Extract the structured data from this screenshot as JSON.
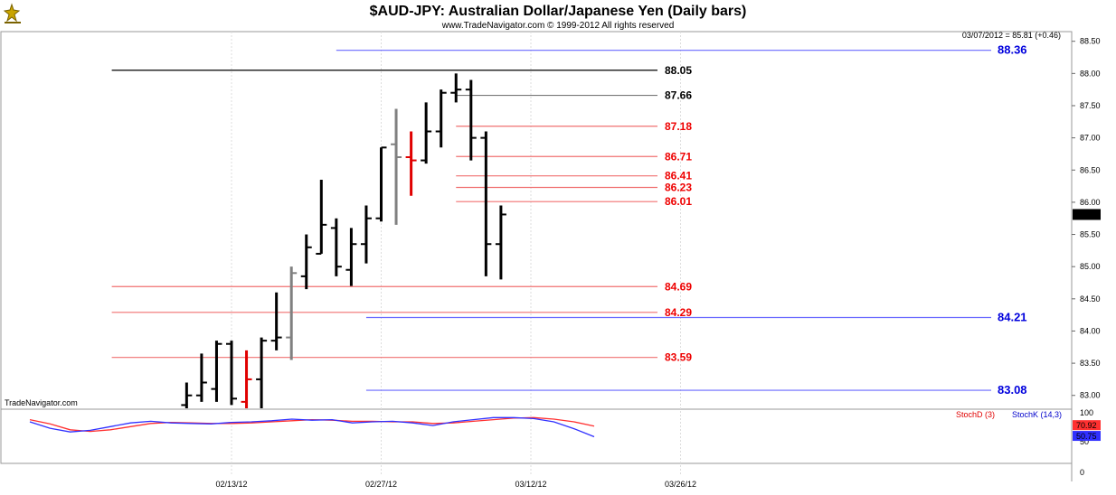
{
  "header": {
    "title": "$AUD-JPY:  Australian Dollar/Japanese Yen  (Daily bars)",
    "copyright": "www.TradeNavigator.com © 1999-2012 All rights reserved",
    "quote_readout": "03/07/2012 = 85.81 (+0.46)",
    "watermark": "TradeNavigator.com"
  },
  "colors": {
    "bar_black": "#000000",
    "bar_red": "#e00000",
    "bar_gray": "#808080",
    "line_red": "#f07070",
    "line_blue": "#6a6aff",
    "text_red": "#ee0000",
    "text_blue": "#0000dd",
    "grid": "#dddddd",
    "stoch_d": "#ff3030",
    "stoch_k": "#3030ff"
  },
  "chart_data": {
    "type": "ohlc",
    "title": "$AUD-JPY:  Australian Dollar/Japanese Yen  (Daily bars)",
    "price_axis": {
      "range": [
        82.8,
        88.65
      ],
      "ticks": [
        "88.50",
        "88.00",
        "87.50",
        "87.00",
        "86.50",
        "86.00",
        "85.50",
        "85.00",
        "84.50",
        "84.00",
        "83.50",
        "83.00"
      ]
    },
    "last_price_label": "85.81",
    "date_ticks": [
      "02/13/12",
      "02/27/12",
      "03/12/12",
      "03/26/12"
    ],
    "bars": [
      {
        "date": "02/08/12",
        "open": 82.85,
        "high": 83.2,
        "low": 82.8,
        "close": 83.0,
        "color": "black"
      },
      {
        "date": "02/09/12",
        "open": 83.0,
        "high": 83.65,
        "low": 82.9,
        "close": 83.2,
        "color": "black"
      },
      {
        "date": "02/10/12",
        "open": 83.1,
        "high": 83.85,
        "low": 82.9,
        "close": 83.8,
        "color": "black"
      },
      {
        "date": "02/13/12",
        "open": 83.8,
        "high": 83.85,
        "low": 82.85,
        "close": 82.95,
        "color": "black"
      },
      {
        "date": "02/14/12",
        "open": 82.9,
        "high": 83.7,
        "low": 82.8,
        "close": 83.25,
        "color": "red"
      },
      {
        "date": "02/15/12",
        "open": 83.25,
        "high": 83.9,
        "low": 82.8,
        "close": 83.85,
        "color": "black"
      },
      {
        "date": "02/16/12",
        "open": 83.85,
        "high": 84.6,
        "low": 83.7,
        "close": 83.9,
        "color": "black"
      },
      {
        "date": "02/17/12",
        "open": 83.9,
        "high": 85.0,
        "low": 83.55,
        "close": 84.9,
        "color": "gray"
      },
      {
        "date": "02/20/12",
        "open": 84.85,
        "high": 85.5,
        "low": 84.65,
        "close": 85.3,
        "color": "black"
      },
      {
        "date": "02/21/12",
        "open": 85.2,
        "high": 86.35,
        "low": 85.2,
        "close": 85.65,
        "color": "black"
      },
      {
        "date": "02/22/12",
        "open": 85.6,
        "high": 85.75,
        "low": 84.85,
        "close": 85.0,
        "color": "black"
      },
      {
        "date": "02/23/12",
        "open": 84.95,
        "high": 85.6,
        "low": 84.7,
        "close": 85.35,
        "color": "black"
      },
      {
        "date": "02/24/12",
        "open": 85.35,
        "high": 85.95,
        "low": 85.05,
        "close": 85.75,
        "color": "black"
      },
      {
        "date": "02/27/12",
        "open": 85.75,
        "high": 86.85,
        "low": 85.7,
        "close": 86.85,
        "color": "black"
      },
      {
        "date": "02/28/12",
        "open": 86.9,
        "high": 87.45,
        "low": 85.65,
        "close": 86.7,
        "color": "gray"
      },
      {
        "date": "02/29/12",
        "open": 86.7,
        "high": 87.1,
        "low": 86.1,
        "close": 86.65,
        "color": "red"
      },
      {
        "date": "03/01/12",
        "open": 86.65,
        "high": 87.55,
        "low": 86.6,
        "close": 87.1,
        "color": "black"
      },
      {
        "date": "03/02/12",
        "open": 87.1,
        "high": 87.75,
        "low": 86.85,
        "close": 87.7,
        "color": "black"
      },
      {
        "date": "03/05/12",
        "open": 87.7,
        "high": 88.0,
        "low": 87.55,
        "close": 87.75,
        "color": "black"
      },
      {
        "date": "03/06/12",
        "open": 87.75,
        "high": 87.9,
        "low": 86.65,
        "close": 87.0,
        "color": "black"
      },
      {
        "date": "03/07/12",
        "open": 87.0,
        "high": 87.1,
        "low": 84.85,
        "close": 85.35,
        "color": "black"
      },
      {
        "date": "03/08/12",
        "open": 85.35,
        "high": 85.95,
        "low": 84.8,
        "close": 85.81,
        "color": "black"
      }
    ],
    "levels": [
      {
        "label": "88.36",
        "price": 88.36,
        "color": "blue",
        "from_date": "02/22/12"
      },
      {
        "label": "88.05",
        "price": 88.05,
        "color": "black",
        "from_date": "02/01/12"
      },
      {
        "label": "87.66",
        "price": 87.66,
        "color": "gray",
        "from_date": "03/05/12"
      },
      {
        "label": "87.18",
        "price": 87.18,
        "color": "red",
        "from_date": "03/05/12"
      },
      {
        "label": "86.71",
        "price": 86.71,
        "color": "red",
        "from_date": "03/05/12"
      },
      {
        "label": "86.41",
        "price": 86.41,
        "color": "red",
        "from_date": "03/05/12"
      },
      {
        "label": "86.23",
        "price": 86.23,
        "color": "red",
        "from_date": "03/05/12"
      },
      {
        "label": "86.01",
        "price": 86.01,
        "color": "red",
        "from_date": "03/05/12"
      },
      {
        "label": "84.69",
        "price": 84.69,
        "color": "red",
        "from_date": "02/01/12"
      },
      {
        "label": "84.29",
        "price": 84.29,
        "color": "red",
        "from_date": "02/01/12"
      },
      {
        "label": "84.21",
        "price": 84.21,
        "color": "blue",
        "from_date": "02/24/12"
      },
      {
        "label": "83.59",
        "price": 83.59,
        "color": "red",
        "from_date": "02/01/12"
      },
      {
        "label": "83.08",
        "price": 83.08,
        "color": "blue",
        "from_date": "02/24/12"
      }
    ],
    "stochastic": {
      "d_label": "StochD (3)",
      "k_label": "StochK (14,3)",
      "axis_ticks": [
        "100",
        "50",
        "0"
      ],
      "range": [
        0,
        100
      ],
      "d_value_label": "70.92",
      "k_value_label": "50.75",
      "k_values": [
        78,
        66,
        59,
        62,
        69,
        76,
        79,
        76,
        75,
        74,
        77,
        78,
        80,
        83,
        81,
        82,
        76,
        78,
        79,
        76,
        71,
        78,
        82,
        86,
        86,
        84,
        78,
        65,
        50
      ],
      "d_values": [
        82,
        74,
        63,
        60,
        63,
        69,
        75,
        77,
        76,
        75,
        75,
        76,
        78,
        80,
        82,
        81,
        79,
        79,
        78,
        78,
        75,
        76,
        79,
        82,
        85,
        86,
        83,
        78,
        70
      ]
    }
  }
}
